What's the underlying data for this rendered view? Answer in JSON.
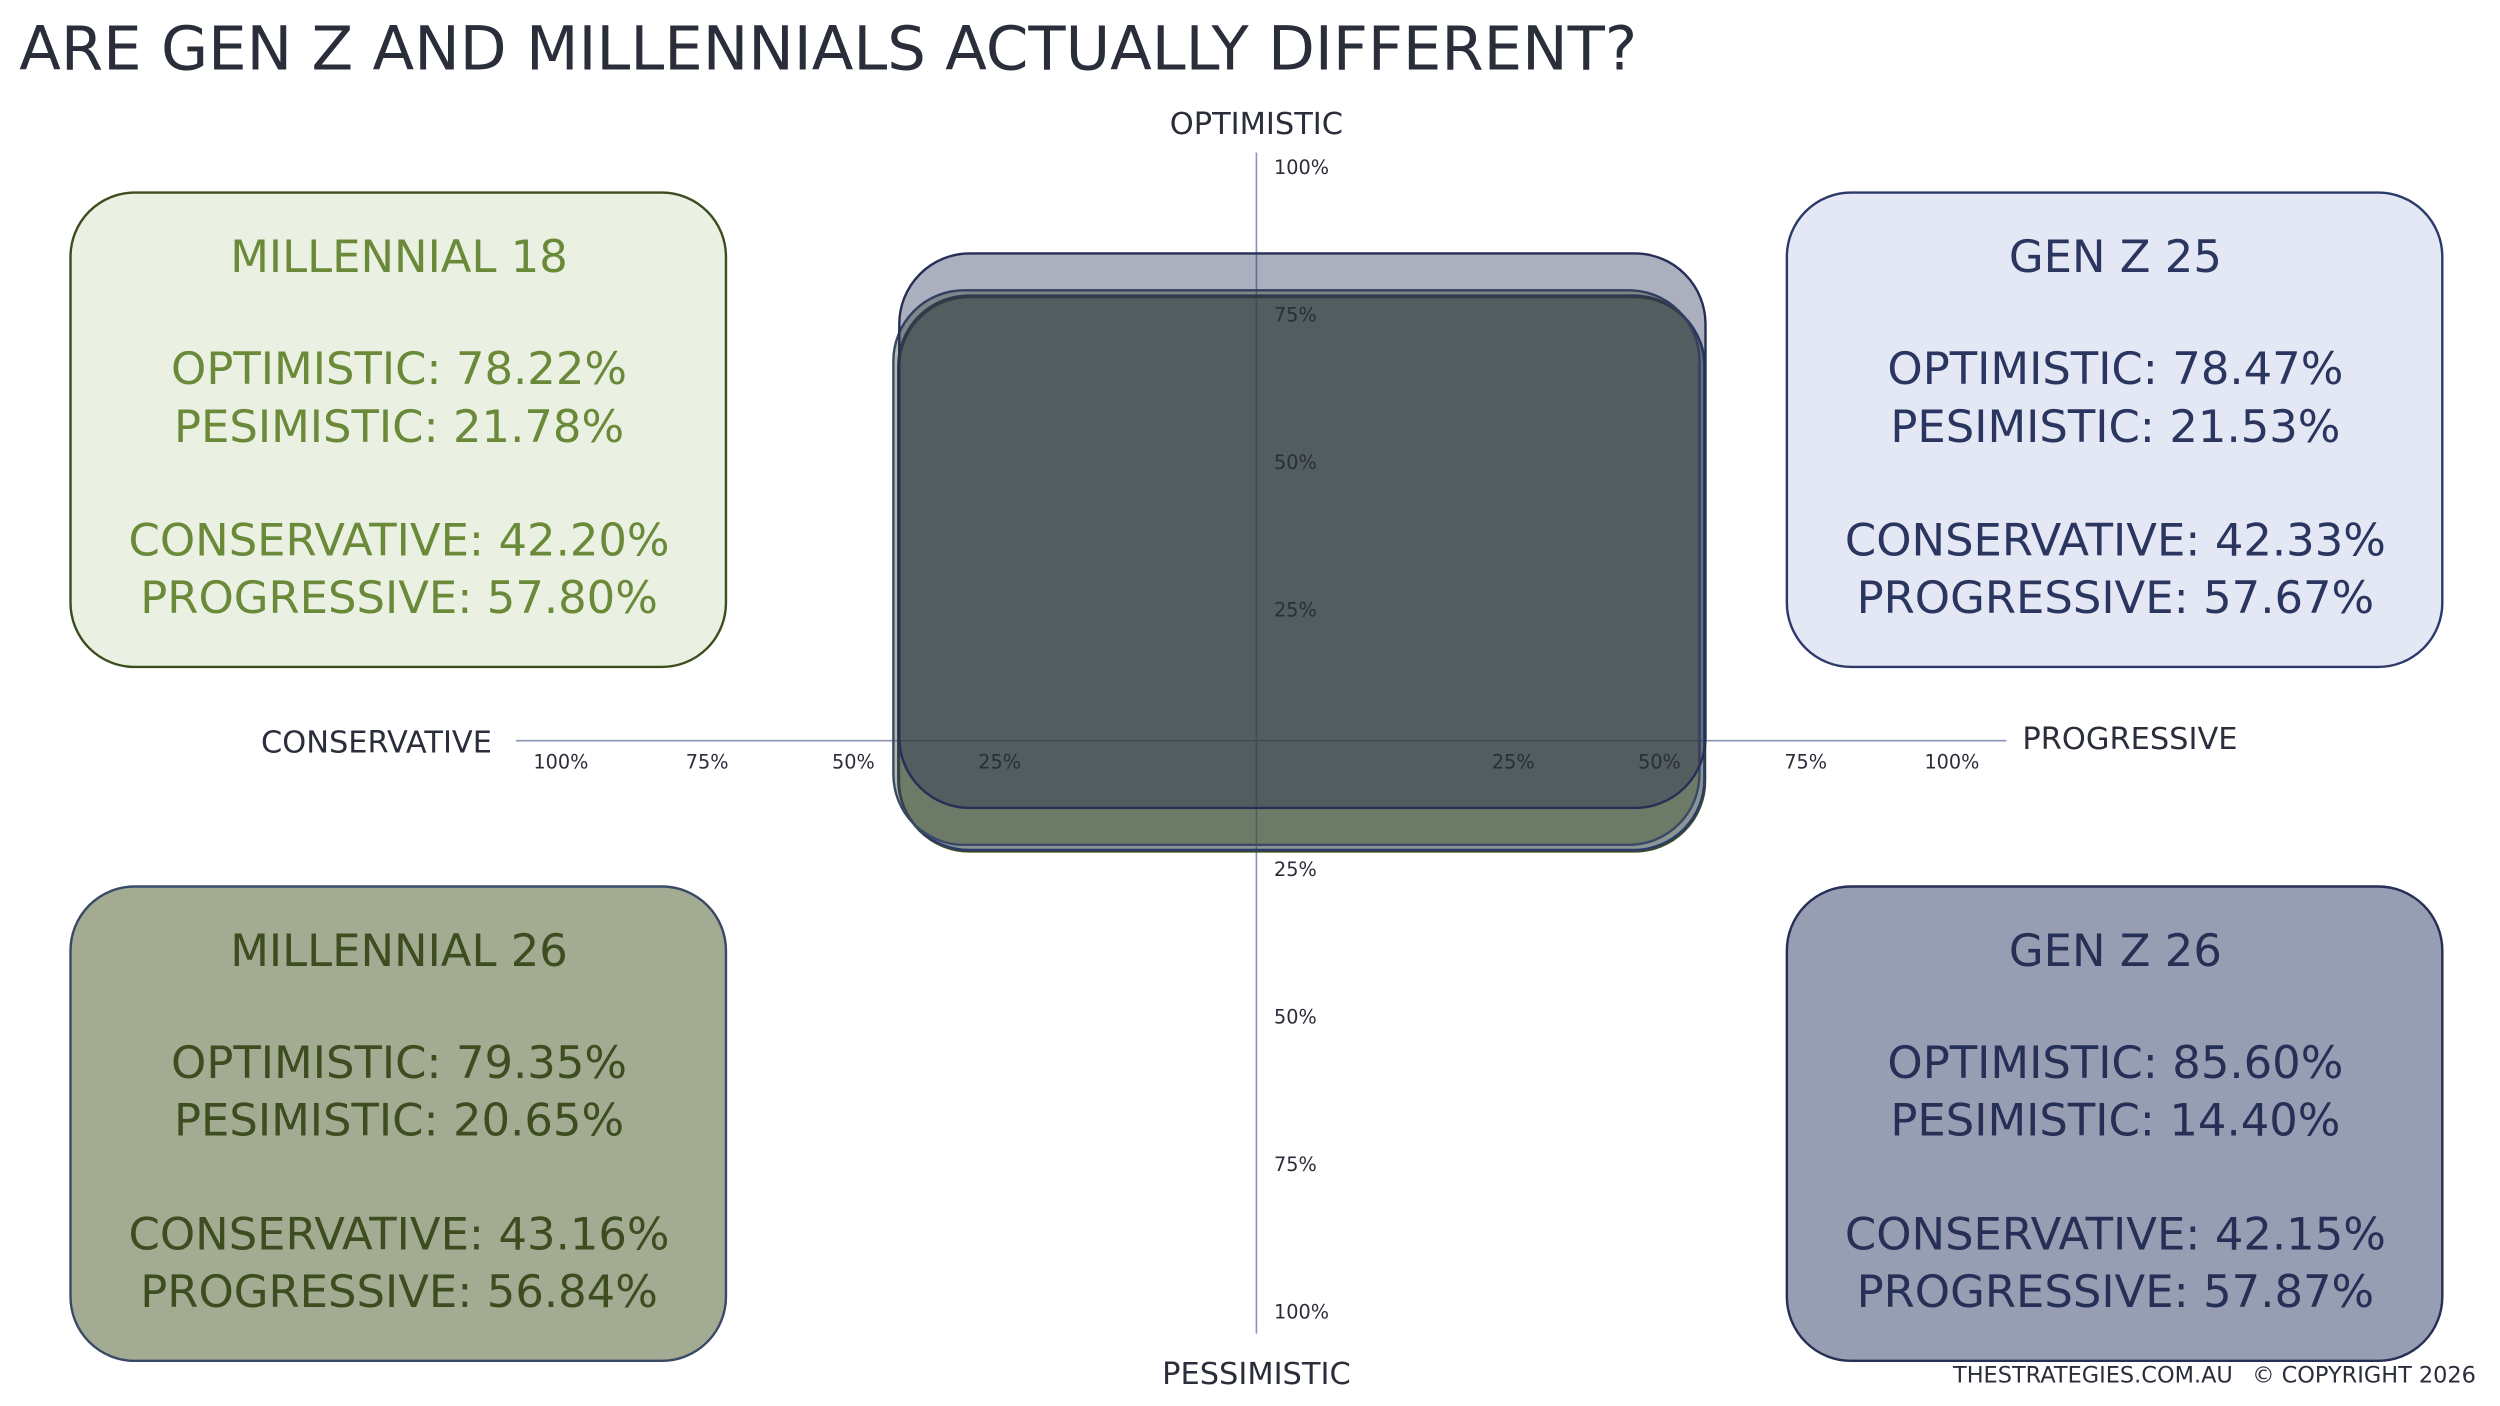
{
  "chart_data": {
    "type": "quadrant",
    "title": "ARE GEN Z AND MILLENNIALS ACTUALLY DIFFERENT?",
    "axis_labels": {
      "top": "OPTIMISTIC",
      "bottom": "PESSIMISTIC",
      "left": "CONSERVATIVE",
      "right": "PROGRESSIVE"
    },
    "ticks": [
      {
        "value": 25,
        "label": "25%"
      },
      {
        "value": 50,
        "label": "50%"
      },
      {
        "value": 75,
        "label": "75%"
      },
      {
        "value": 100,
        "label": "100%"
      }
    ],
    "metric_labels": [
      "OPTIMISTIC:",
      "PESIMISTIC:",
      "CONSERVATIVE:",
      "PROGRESSIVE:"
    ],
    "series": [
      {
        "name": "MILLENNIAL 18",
        "color": "#ebf1e2",
        "stroke": "#3d4d1f",
        "text_color": "#6a8a3a",
        "values": [
          78.22,
          21.78,
          42.2,
          57.8
        ],
        "value_labels": [
          "78.22%",
          "21.78%",
          "42.20%",
          "57.80%"
        ]
      },
      {
        "name": "GEN Z 25",
        "color": "#e4e8f4",
        "stroke": "#2c3a6a",
        "text_color": "#2a3560",
        "values": [
          78.47,
          21.53,
          42.33,
          57.67
        ],
        "value_labels": [
          "78.47%",
          "21.53%",
          "42.33%",
          "57.67%"
        ]
      },
      {
        "name": "MILLENNIAL 26",
        "color": "#a3ac93",
        "stroke": "#3a4a66",
        "text_color": "#3d4d1f",
        "values": [
          79.35,
          20.65,
          43.16,
          56.84
        ],
        "value_labels": [
          "79.35%",
          "20.65%",
          "43.16%",
          "56.84%"
        ]
      },
      {
        "name": "GEN Z 26",
        "color": "#979eb3",
        "stroke": "#262f55",
        "text_color": "#262f55",
        "values": [
          85.6,
          14.4,
          42.15,
          57.87
        ],
        "value_labels": [
          "85.60%",
          "14.40%",
          "42.15%",
          "57.87%"
        ]
      }
    ],
    "footer": [
      "THESTRATEGIES.COM.AU",
      "© COPYRIGHT 2026"
    ]
  }
}
